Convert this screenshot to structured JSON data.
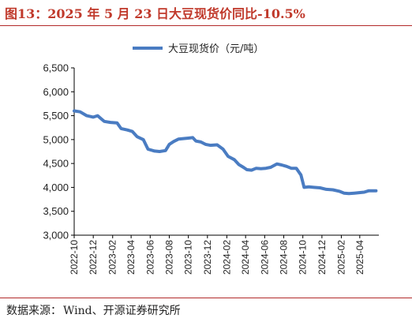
{
  "header": {
    "title": "图13：2025 年 5 月 23 日大豆现货价同比-10.5%"
  },
  "footer": {
    "source_label": "数据来源：",
    "source_text": "Wind、开源证券研究所"
  },
  "colors": {
    "series": "#4a7cc2",
    "accent": "#b22a2a",
    "axis": "#000000"
  },
  "chart_data": {
    "type": "line",
    "title": "图13：2025 年 5 月 23 日大豆现货价同比-10.5%",
    "xlabel": "",
    "ylabel": "",
    "ylim": [
      3000,
      6500
    ],
    "yticks": [
      "3,000",
      "3,500",
      "4,000",
      "4,500",
      "5,000",
      "5,500",
      "6,000",
      "6,500"
    ],
    "xlim": [
      "2022-10",
      "2025-06"
    ],
    "xticks": [
      "2022-10",
      "2022-12",
      "2023-02",
      "2023-04",
      "2023-06",
      "2023-08",
      "2023-10",
      "2023-12",
      "2024-02",
      "2024-04",
      "2024-06",
      "2024-08",
      "2024-10",
      "2024-12",
      "2025-02",
      "2025-04"
    ],
    "grid": false,
    "legend_position": "top-center",
    "series": [
      {
        "name": "大豆现货价（元/吨）",
        "points": [
          [
            "2022-10-01",
            5600
          ],
          [
            "2022-10-20",
            5580
          ],
          [
            "2022-11-10",
            5500
          ],
          [
            "2022-12-01",
            5470
          ],
          [
            "2022-12-15",
            5500
          ],
          [
            "2023-01-05",
            5380
          ],
          [
            "2023-01-25",
            5360
          ],
          [
            "2023-02-15",
            5350
          ],
          [
            "2023-02-28",
            5230
          ],
          [
            "2023-03-20",
            5200
          ],
          [
            "2023-04-05",
            5170
          ],
          [
            "2023-04-20",
            5060
          ],
          [
            "2023-05-10",
            5000
          ],
          [
            "2023-05-25",
            4800
          ],
          [
            "2023-06-15",
            4760
          ],
          [
            "2023-07-01",
            4750
          ],
          [
            "2023-07-20",
            4770
          ],
          [
            "2023-08-01",
            4900
          ],
          [
            "2023-08-15",
            4960
          ],
          [
            "2023-08-30",
            5010
          ],
          [
            "2023-09-15",
            5020
          ],
          [
            "2023-10-01",
            5030
          ],
          [
            "2023-10-15",
            5040
          ],
          [
            "2023-10-25",
            4970
          ],
          [
            "2023-11-10",
            4950
          ],
          [
            "2023-11-25",
            4900
          ],
          [
            "2023-12-10",
            4880
          ],
          [
            "2024-01-01",
            4890
          ],
          [
            "2024-01-20",
            4800
          ],
          [
            "2024-02-05",
            4650
          ],
          [
            "2024-02-25",
            4580
          ],
          [
            "2024-03-10",
            4480
          ],
          [
            "2024-03-25",
            4420
          ],
          [
            "2024-04-05",
            4370
          ],
          [
            "2024-04-20",
            4360
          ],
          [
            "2024-05-05",
            4400
          ],
          [
            "2024-05-20",
            4390
          ],
          [
            "2024-06-05",
            4400
          ],
          [
            "2024-06-20",
            4420
          ],
          [
            "2024-07-10",
            4490
          ],
          [
            "2024-07-25",
            4470
          ],
          [
            "2024-08-10",
            4440
          ],
          [
            "2024-08-25",
            4400
          ],
          [
            "2024-09-10",
            4400
          ],
          [
            "2024-09-25",
            4260
          ],
          [
            "2024-10-05",
            4000
          ],
          [
            "2024-10-20",
            4010
          ],
          [
            "2024-11-05",
            4000
          ],
          [
            "2024-11-25",
            3990
          ],
          [
            "2024-12-15",
            3960
          ],
          [
            "2025-01-05",
            3950
          ],
          [
            "2025-01-25",
            3920
          ],
          [
            "2025-02-10",
            3880
          ],
          [
            "2025-02-25",
            3870
          ],
          [
            "2025-03-15",
            3880
          ],
          [
            "2025-03-30",
            3890
          ],
          [
            "2025-04-15",
            3900
          ],
          [
            "2025-04-30",
            3930
          ],
          [
            "2025-05-23",
            3930
          ]
        ]
      }
    ]
  }
}
